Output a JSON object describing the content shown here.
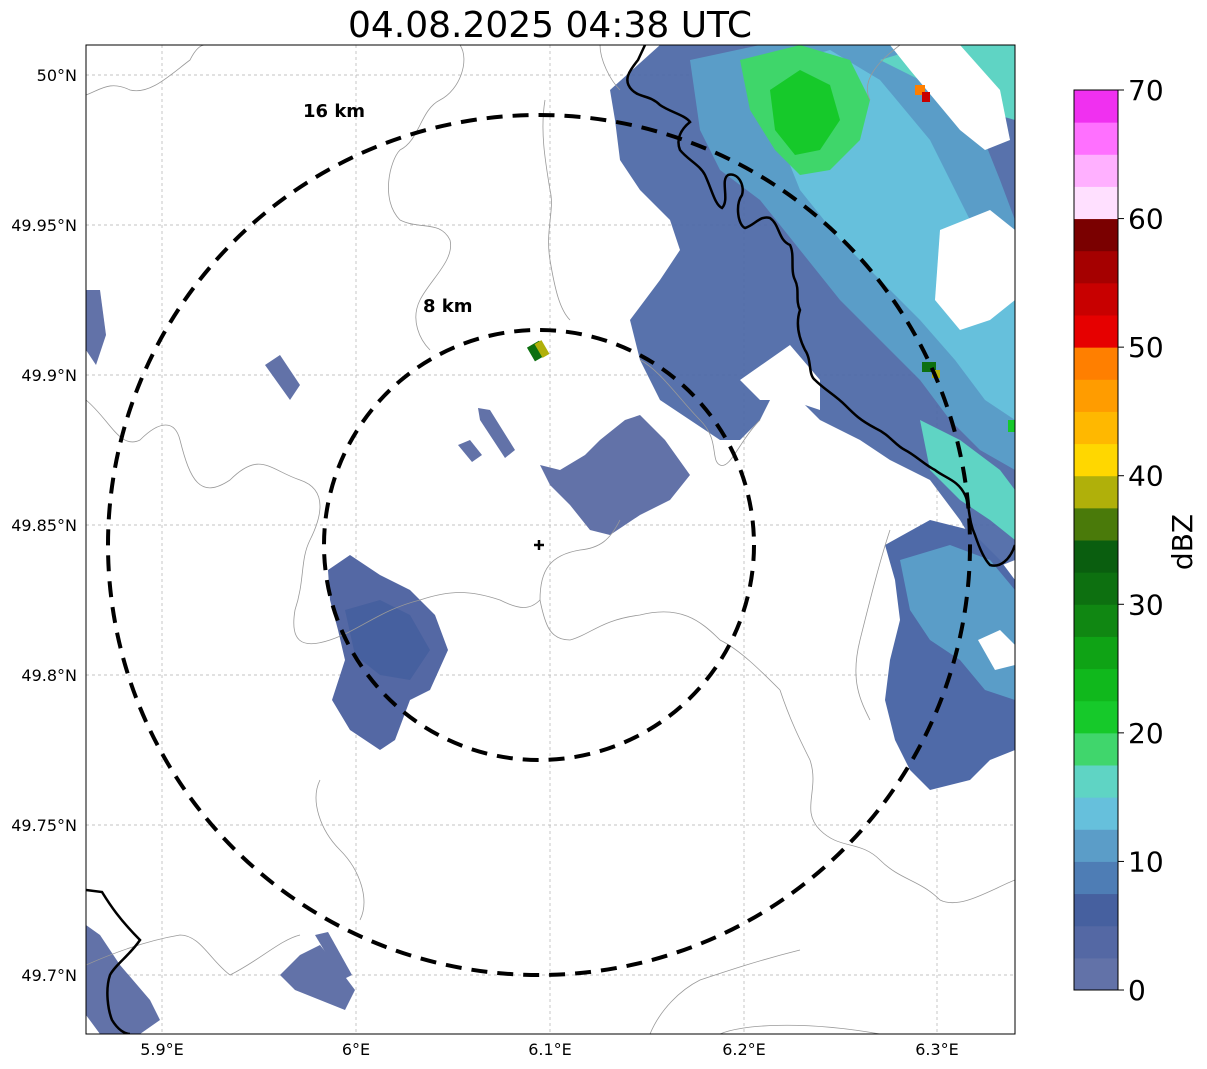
{
  "title": "04.08.2025 04:38 UTC",
  "axes": {
    "lon_ticks": [
      "5.9°E",
      "6°E",
      "6.1°E",
      "6.2°E",
      "6.3°E"
    ],
    "lat_ticks": [
      "50°N",
      "49.95°N",
      "49.9°N",
      "49.85°N",
      "49.8°N",
      "49.75°N",
      "49.7°N"
    ]
  },
  "range_rings": [
    {
      "label": "16 km",
      "radius_km": 16
    },
    {
      "label": "8 km",
      "radius_km": 8
    }
  ],
  "radar_site_marker": "plus-icon",
  "colorbar": {
    "unit": "dBZ",
    "tick_labels": [
      "0",
      "10",
      "20",
      "30",
      "40",
      "50",
      "60",
      "70"
    ],
    "colors": [
      "#6272a8",
      "#5468a4",
      "#46609f",
      "#4e7db5",
      "#5b9dc8",
      "#66c0dc",
      "#5fd4c4",
      "#40d66c",
      "#16c92a",
      "#10b81c",
      "#0fa315",
      "#108712",
      "#0d7010",
      "#0a5e0f",
      "#4a7a0a",
      "#b0b00a",
      "#ffd700",
      "#ffb800",
      "#ff9c00",
      "#ff7f00",
      "#e60000",
      "#c80000",
      "#a50000",
      "#7a0000",
      "#ffe0ff",
      "#ffb0ff",
      "#ff70ff",
      "#f030f0"
    ]
  },
  "chart_data": {
    "type": "map",
    "map_kind": "radar reflectivity (dBZ)",
    "xlim": [
      5.86,
      6.34
    ],
    "ylim": [
      49.68,
      50.01
    ],
    "rings_km": [
      8,
      16
    ],
    "colorbar_range": [
      0,
      70
    ]
  }
}
